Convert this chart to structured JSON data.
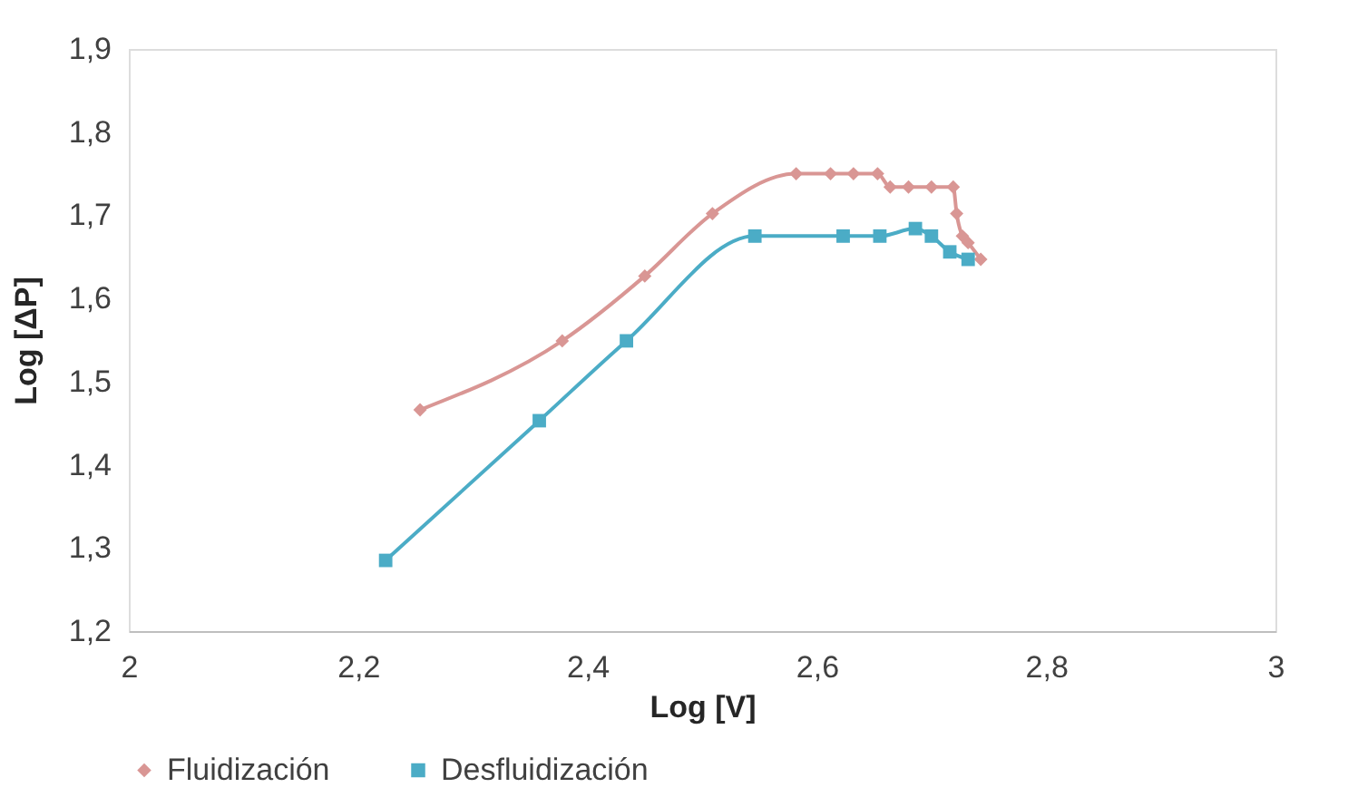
{
  "chart_data": {
    "type": "line",
    "xlabel": "Log [V]",
    "ylabel": "Log [ΔP]",
    "xlim": [
      2,
      3
    ],
    "xticks": [
      2,
      {
        "value": 2.2,
        "label": "2,2"
      },
      {
        "value": 2.4,
        "label": "2,4"
      },
      {
        "value": 2.6,
        "label": "2,6"
      },
      {
        "value": 2.8,
        "label": "2,8"
      },
      3
    ],
    "ylim": [
      1.2,
      1.9
    ],
    "yticks": [
      {
        "value": 1.2,
        "label": "1,2"
      },
      {
        "value": 1.3,
        "label": "1,3"
      },
      {
        "value": 1.4,
        "label": "1,4"
      },
      {
        "value": 1.5,
        "label": "1,5"
      },
      {
        "value": 1.6,
        "label": "1,6"
      },
      {
        "value": 1.7,
        "label": "1,7"
      },
      {
        "value": 1.8,
        "label": "1,8"
      },
      {
        "value": 1.9,
        "label": "1,9"
      }
    ],
    "grid": false,
    "legend": "bottom",
    "series": [
      {
        "name": "Fluidización",
        "color": "#d99694",
        "marker": "diamond",
        "x": [
          2.254,
          2.378,
          2.45,
          2.509,
          2.582,
          2.612,
          2.632,
          2.653,
          2.664,
          2.68,
          2.7,
          2.719,
          2.722,
          2.727,
          2.732,
          2.743
        ],
        "values": [
          1.466,
          1.549,
          1.627,
          1.702,
          1.75,
          1.75,
          1.75,
          1.75,
          1.734,
          1.734,
          1.734,
          1.734,
          1.702,
          1.675,
          1.667,
          1.647
        ]
      },
      {
        "name": "Desfluidización",
        "color": "#4bacc6",
        "marker": "square",
        "x": [
          2.224,
          2.358,
          2.434,
          2.546,
          2.623,
          2.655,
          2.686,
          2.7,
          2.716,
          2.732
        ],
        "values": [
          1.285,
          1.453,
          1.549,
          1.675,
          1.675,
          1.675,
          1.684,
          1.675,
          1.656,
          1.647
        ]
      }
    ]
  }
}
